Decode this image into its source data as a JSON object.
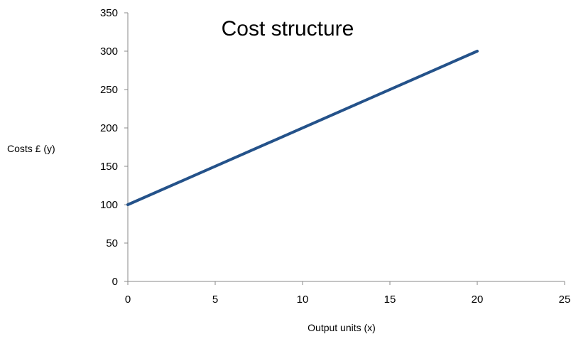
{
  "chart_data": {
    "type": "line",
    "title": "Cost structure",
    "xlabel": "Output units (x)",
    "ylabel": "Costs £ (y)",
    "xlim": [
      0,
      25
    ],
    "ylim": [
      0,
      350
    ],
    "xticks": [
      0,
      5,
      10,
      15,
      20,
      25
    ],
    "yticks": [
      0,
      50,
      100,
      150,
      200,
      250,
      300,
      350
    ],
    "grid": false,
    "legend": "none",
    "series": [
      {
        "color": "#24528a",
        "x": [
          0,
          20
        ],
        "y": [
          100,
          300
        ]
      }
    ]
  }
}
